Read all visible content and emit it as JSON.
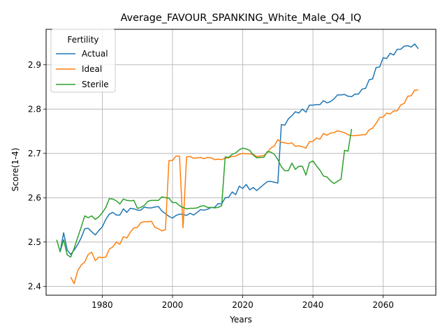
{
  "chart_data": {
    "type": "line",
    "title": "Average_FAVOUR_SPANKING_White_Male_Q4_IQ",
    "xlabel": "Years",
    "ylabel": "Score(1-4)",
    "xlim": [
      1964,
      2075
    ],
    "ylim": [
      2.38,
      2.98
    ],
    "xticks": [
      1980,
      2000,
      2020,
      2040,
      2060
    ],
    "yticks": [
      2.4,
      2.5,
      2.6,
      2.7,
      2.8,
      2.9
    ],
    "ytick_labels": [
      "2.4",
      "2.5",
      "2.6",
      "2.7",
      "2.8",
      "2.9"
    ],
    "grid": true,
    "legend": {
      "title": "Fertility",
      "position": "top-left"
    },
    "series": [
      {
        "name": "Actual",
        "color": "#1f77b4",
        "points": [
          [
            1968,
            2.478
          ],
          [
            1969,
            2.521
          ],
          [
            1970,
            2.482
          ],
          [
            1971,
            2.472
          ],
          [
            1972,
            2.482
          ],
          [
            1973,
            2.494
          ],
          [
            1974,
            2.51
          ],
          [
            1975,
            2.53
          ],
          [
            1976,
            2.531
          ],
          [
            1977,
            2.523
          ],
          [
            1978,
            2.516
          ],
          [
            1979,
            2.526
          ],
          [
            1980,
            2.534
          ],
          [
            1981,
            2.551
          ],
          [
            1982,
            2.563
          ],
          [
            1983,
            2.567
          ],
          [
            1984,
            2.561
          ],
          [
            1985,
            2.561
          ],
          [
            1986,
            2.575
          ],
          [
            1987,
            2.567
          ],
          [
            1988,
            2.576
          ],
          [
            1989,
            2.575
          ],
          [
            1990,
            2.572
          ],
          [
            1991,
            2.572
          ],
          [
            1992,
            2.579
          ],
          [
            1993,
            2.577
          ],
          [
            1994,
            2.577
          ],
          [
            1995,
            2.579
          ],
          [
            1996,
            2.58
          ],
          [
            1997,
            2.57
          ],
          [
            1998,
            2.564
          ],
          [
            1999,
            2.558
          ],
          [
            2000,
            2.554
          ],
          [
            2001,
            2.56
          ],
          [
            2002,
            2.563
          ],
          [
            2003,
            2.562
          ],
          [
            2004,
            2.56
          ],
          [
            2005,
            2.565
          ],
          [
            2006,
            2.561
          ],
          [
            2007,
            2.567
          ],
          [
            2008,
            2.573
          ],
          [
            2009,
            2.572
          ],
          [
            2010,
            2.574
          ],
          [
            2011,
            2.578
          ],
          [
            2012,
            2.578
          ],
          [
            2013,
            2.587
          ],
          [
            2014,
            2.586
          ],
          [
            2015,
            2.6
          ],
          [
            2016,
            2.601
          ],
          [
            2017,
            2.613
          ],
          [
            2018,
            2.607
          ],
          [
            2019,
            2.626
          ],
          [
            2020,
            2.621
          ],
          [
            2021,
            2.63
          ],
          [
            2022,
            2.618
          ],
          [
            2023,
            2.623
          ],
          [
            2024,
            2.616
          ],
          [
            2025,
            2.623
          ],
          [
            2026,
            2.63
          ],
          [
            2027,
            2.636
          ],
          [
            2028,
            2.637
          ],
          [
            2029,
            2.635
          ],
          [
            2030,
            2.633
          ],
          [
            2031,
            2.765
          ],
          [
            2032,
            2.764
          ],
          [
            2033,
            2.778
          ],
          [
            2034,
            2.785
          ],
          [
            2035,
            2.794
          ],
          [
            2036,
            2.791
          ],
          [
            2037,
            2.8
          ],
          [
            2038,
            2.793
          ],
          [
            2039,
            2.809
          ],
          [
            2040,
            2.809
          ],
          [
            2041,
            2.81
          ],
          [
            2042,
            2.81
          ],
          [
            2043,
            2.819
          ],
          [
            2044,
            2.814
          ],
          [
            2045,
            2.817
          ],
          [
            2046,
            2.823
          ],
          [
            2047,
            2.832
          ],
          [
            2048,
            2.832
          ],
          [
            2049,
            2.833
          ],
          [
            2050,
            2.829
          ],
          [
            2051,
            2.828
          ],
          [
            2052,
            2.834
          ],
          [
            2053,
            2.834
          ],
          [
            2054,
            2.845
          ],
          [
            2055,
            2.847
          ],
          [
            2056,
            2.866
          ],
          [
            2057,
            2.868
          ],
          [
            2058,
            2.894
          ],
          [
            2059,
            2.895
          ],
          [
            2060,
            2.916
          ],
          [
            2061,
            2.914
          ],
          [
            2062,
            2.926
          ],
          [
            2063,
            2.922
          ],
          [
            2064,
            2.935
          ],
          [
            2065,
            2.935
          ],
          [
            2066,
            2.942
          ],
          [
            2067,
            2.943
          ],
          [
            2068,
            2.94
          ],
          [
            2069,
            2.947
          ],
          [
            2070,
            2.936
          ]
        ]
      },
      {
        "name": "Ideal",
        "color": "#ff7f0e",
        "points": [
          [
            1971,
            2.421
          ],
          [
            1972,
            2.406
          ],
          [
            1973,
            2.435
          ],
          [
            1974,
            2.448
          ],
          [
            1975,
            2.455
          ],
          [
            1976,
            2.472
          ],
          [
            1977,
            2.477
          ],
          [
            1978,
            2.458
          ],
          [
            1979,
            2.466
          ],
          [
            1980,
            2.465
          ],
          [
            1981,
            2.466
          ],
          [
            1982,
            2.484
          ],
          [
            1983,
            2.489
          ],
          [
            1984,
            2.5
          ],
          [
            1985,
            2.495
          ],
          [
            1986,
            2.512
          ],
          [
            1987,
            2.509
          ],
          [
            1988,
            2.522
          ],
          [
            1989,
            2.532
          ],
          [
            1990,
            2.533
          ],
          [
            1991,
            2.544
          ],
          [
            1992,
            2.546
          ],
          [
            1993,
            2.546
          ],
          [
            1994,
            2.547
          ],
          [
            1995,
            2.533
          ],
          [
            1996,
            2.53
          ],
          [
            1997,
            2.525
          ],
          [
            1998,
            2.528
          ],
          [
            1999,
            2.684
          ],
          [
            2000,
            2.684
          ],
          [
            2001,
            2.694
          ],
          [
            2002,
            2.694
          ],
          [
            2003,
            2.532
          ],
          [
            2004,
            2.692
          ],
          [
            2005,
            2.693
          ],
          [
            2006,
            2.689
          ],
          [
            2007,
            2.69
          ],
          [
            2008,
            2.691
          ],
          [
            2009,
            2.688
          ],
          [
            2010,
            2.691
          ],
          [
            2011,
            2.69
          ],
          [
            2012,
            2.686
          ],
          [
            2013,
            2.687
          ],
          [
            2014,
            2.686
          ],
          [
            2015,
            2.689
          ],
          [
            2016,
            2.69
          ],
          [
            2017,
            2.693
          ],
          [
            2018,
            2.694
          ],
          [
            2019,
            2.698
          ],
          [
            2020,
            2.7
          ],
          [
            2021,
            2.699
          ],
          [
            2022,
            2.699
          ],
          [
            2023,
            2.698
          ],
          [
            2024,
            2.693
          ],
          [
            2025,
            2.694
          ],
          [
            2026,
            2.695
          ],
          [
            2027,
            2.702
          ],
          [
            2028,
            2.712
          ],
          [
            2029,
            2.717
          ],
          [
            2030,
            2.731
          ],
          [
            2031,
            2.725
          ],
          [
            2032,
            2.724
          ],
          [
            2033,
            2.722
          ],
          [
            2034,
            2.724
          ],
          [
            2035,
            2.716
          ],
          [
            2036,
            2.717
          ],
          [
            2037,
            2.715
          ],
          [
            2038,
            2.712
          ],
          [
            2039,
            2.726
          ],
          [
            2040,
            2.727
          ],
          [
            2041,
            2.735
          ],
          [
            2042,
            2.732
          ],
          [
            2043,
            2.745
          ],
          [
            2044,
            2.741
          ],
          [
            2045,
            2.746
          ],
          [
            2046,
            2.747
          ],
          [
            2047,
            2.751
          ],
          [
            2048,
            2.749
          ],
          [
            2049,
            2.747
          ],
          [
            2050,
            2.742
          ],
          [
            2051,
            2.74
          ],
          [
            2052,
            2.74
          ],
          [
            2053,
            2.741
          ],
          [
            2054,
            2.742
          ],
          [
            2055,
            2.742
          ],
          [
            2056,
            2.753
          ],
          [
            2057,
            2.757
          ],
          [
            2058,
            2.768
          ],
          [
            2059,
            2.781
          ],
          [
            2060,
            2.782
          ],
          [
            2061,
            2.791
          ],
          [
            2062,
            2.789
          ],
          [
            2063,
            2.796
          ],
          [
            2064,
            2.796
          ],
          [
            2065,
            2.809
          ],
          [
            2066,
            2.813
          ],
          [
            2067,
            2.829
          ],
          [
            2068,
            2.83
          ],
          [
            2069,
            2.843
          ],
          [
            2070,
            2.843
          ]
        ]
      },
      {
        "name": "Sterile",
        "color": "#2ca02c",
        "points": [
          [
            1967,
            2.505
          ],
          [
            1968,
            2.478
          ],
          [
            1969,
            2.505
          ],
          [
            1970,
            2.471
          ],
          [
            1971,
            2.466
          ],
          [
            1972,
            2.486
          ],
          [
            1973,
            2.51
          ],
          [
            1974,
            2.534
          ],
          [
            1975,
            2.559
          ],
          [
            1976,
            2.555
          ],
          [
            1977,
            2.559
          ],
          [
            1978,
            2.551
          ],
          [
            1979,
            2.557
          ],
          [
            1980,
            2.566
          ],
          [
            1981,
            2.578
          ],
          [
            1982,
            2.598
          ],
          [
            1983,
            2.597
          ],
          [
            1984,
            2.593
          ],
          [
            1985,
            2.586
          ],
          [
            1986,
            2.597
          ],
          [
            1987,
            2.594
          ],
          [
            1988,
            2.593
          ],
          [
            1989,
            2.594
          ],
          [
            1990,
            2.576
          ],
          [
            1991,
            2.578
          ],
          [
            1992,
            2.583
          ],
          [
            1993,
            2.592
          ],
          [
            1994,
            2.594
          ],
          [
            1995,
            2.594
          ],
          [
            1996,
            2.594
          ],
          [
            1997,
            2.602
          ],
          [
            1998,
            2.6
          ],
          [
            1999,
            2.599
          ],
          [
            2000,
            2.589
          ],
          [
            2001,
            2.589
          ],
          [
            2002,
            2.582
          ],
          [
            2003,
            2.578
          ],
          [
            2004,
            2.575
          ],
          [
            2005,
            2.576
          ],
          [
            2006,
            2.576
          ],
          [
            2007,
            2.577
          ],
          [
            2008,
            2.581
          ],
          [
            2009,
            2.582
          ],
          [
            2010,
            2.578
          ],
          [
            2011,
            2.578
          ],
          [
            2012,
            2.577
          ],
          [
            2013,
            2.578
          ],
          [
            2014,
            2.582
          ],
          [
            2015,
            2.692
          ],
          [
            2016,
            2.691
          ],
          [
            2017,
            2.698
          ],
          [
            2018,
            2.701
          ],
          [
            2019,
            2.708
          ],
          [
            2020,
            2.712
          ],
          [
            2021,
            2.71
          ],
          [
            2022,
            2.707
          ],
          [
            2023,
            2.696
          ],
          [
            2024,
            2.69
          ],
          [
            2025,
            2.691
          ],
          [
            2026,
            2.691
          ],
          [
            2027,
            2.704
          ],
          [
            2028,
            2.703
          ],
          [
            2029,
            2.698
          ],
          [
            2030,
            2.686
          ],
          [
            2031,
            2.67
          ],
          [
            2032,
            2.661
          ],
          [
            2033,
            2.661
          ],
          [
            2034,
            2.678
          ],
          [
            2035,
            2.664
          ],
          [
            2036,
            2.671
          ],
          [
            2037,
            2.671
          ],
          [
            2038,
            2.651
          ],
          [
            2039,
            2.679
          ],
          [
            2040,
            2.683
          ],
          [
            2041,
            2.672
          ],
          [
            2042,
            2.662
          ],
          [
            2043,
            2.649
          ],
          [
            2044,
            2.647
          ],
          [
            2045,
            2.638
          ],
          [
            2046,
            2.632
          ],
          [
            2047,
            2.637
          ],
          [
            2048,
            2.642
          ],
          [
            2049,
            2.707
          ],
          [
            2050,
            2.705
          ],
          [
            2051,
            2.755
          ]
        ]
      }
    ]
  }
}
